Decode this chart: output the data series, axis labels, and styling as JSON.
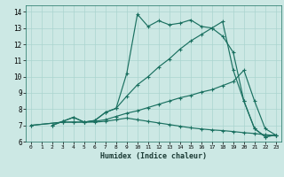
{
  "xlabel": "Humidex (Indice chaleur)",
  "bg_color": "#cce8e4",
  "grid_color": "#aad4cf",
  "line_color": "#1a7060",
  "xlim": [
    -0.5,
    23.5
  ],
  "ylim": [
    6,
    14.4
  ],
  "xticks": [
    0,
    1,
    2,
    3,
    4,
    5,
    6,
    7,
    8,
    9,
    10,
    11,
    12,
    13,
    14,
    15,
    16,
    17,
    18,
    19,
    20,
    21,
    22,
    23
  ],
  "yticks": [
    6,
    7,
    8,
    9,
    10,
    11,
    12,
    13,
    14
  ],
  "line1_x": [
    2,
    3,
    4,
    5,
    6,
    7,
    8,
    9,
    10,
    11,
    12,
    13,
    14,
    15,
    16,
    17,
    18,
    19,
    20,
    21,
    22,
    23
  ],
  "line1_y": [
    7.0,
    7.25,
    7.5,
    7.2,
    7.3,
    7.8,
    8.05,
    10.2,
    13.85,
    13.1,
    13.45,
    13.2,
    13.3,
    13.5,
    13.1,
    13.0,
    12.5,
    11.5,
    8.5,
    6.8,
    6.3,
    6.4
  ],
  "line2_x": [
    2,
    3,
    4,
    5,
    6,
    7,
    8,
    9,
    10,
    11,
    12,
    13,
    14,
    15,
    16,
    17,
    18,
    19,
    20,
    21,
    22,
    23
  ],
  "line2_y": [
    7.0,
    7.25,
    7.5,
    7.2,
    7.3,
    7.8,
    8.05,
    8.8,
    9.5,
    10.0,
    10.6,
    11.1,
    11.7,
    12.2,
    12.6,
    13.0,
    13.4,
    10.4,
    8.5,
    6.8,
    6.3,
    6.4
  ],
  "line3_x": [
    0,
    3,
    4,
    5,
    6,
    7,
    8,
    9,
    10,
    11,
    12,
    13,
    14,
    15,
    16,
    17,
    18,
    19,
    20,
    21,
    22,
    23
  ],
  "line3_y": [
    7.0,
    7.2,
    7.2,
    7.2,
    7.25,
    7.35,
    7.55,
    7.75,
    7.9,
    8.1,
    8.3,
    8.5,
    8.7,
    8.85,
    9.05,
    9.2,
    9.45,
    9.7,
    10.4,
    8.5,
    6.8,
    6.4
  ],
  "line4_x": [
    0,
    3,
    4,
    5,
    6,
    7,
    8,
    9,
    10,
    11,
    12,
    13,
    14,
    15,
    16,
    17,
    18,
    19,
    20,
    21,
    22,
    23
  ],
  "line4_y": [
    7.0,
    7.2,
    7.2,
    7.2,
    7.2,
    7.25,
    7.35,
    7.45,
    7.35,
    7.25,
    7.15,
    7.05,
    6.95,
    6.85,
    6.78,
    6.72,
    6.68,
    6.62,
    6.55,
    6.5,
    6.42,
    6.38
  ]
}
